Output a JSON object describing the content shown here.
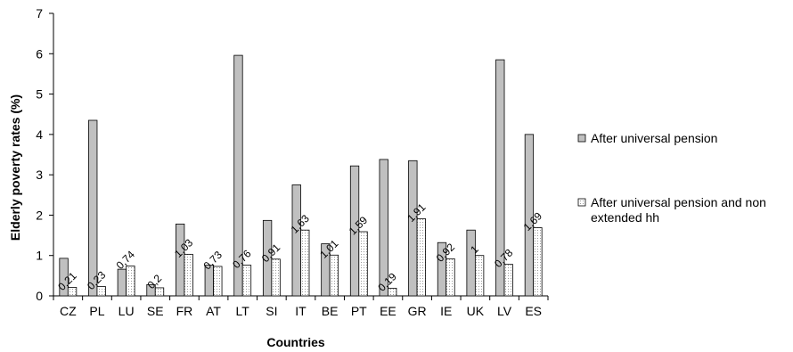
{
  "chart_data": {
    "type": "bar",
    "xlabel": "Countries",
    "ylabel": "Elderly poverty rates (%)",
    "ylim": [
      0,
      7
    ],
    "yticks": [
      "0",
      "1",
      "2",
      "3",
      "4",
      "5",
      "6",
      "7"
    ],
    "categories": [
      "CZ",
      "PL",
      "LU",
      "SE",
      "FR",
      "AT",
      "LT",
      "SI",
      "IT",
      "BE",
      "PT",
      "EE",
      "GR",
      "IE",
      "UK",
      "LV",
      "ES"
    ],
    "series": [
      {
        "name": "After universal pension",
        "color": "#c0c0c0",
        "values": [
          0.93,
          4.35,
          0.66,
          0.28,
          1.78,
          0.76,
          5.96,
          1.87,
          2.75,
          1.29,
          3.22,
          3.38,
          3.35,
          1.32,
          1.63,
          5.85,
          4.0
        ]
      },
      {
        "name": "After universal pension and non extended hh",
        "color": "#ffffff",
        "values": [
          0.21,
          0.23,
          0.74,
          0.2,
          1.03,
          0.73,
          0.76,
          0.91,
          1.63,
          1.01,
          1.59,
          0.19,
          1.91,
          0.92,
          1,
          0.78,
          1.69
        ],
        "labels": [
          "0,21",
          "0,23",
          "0,74",
          "0,2",
          "1,03",
          "0,73",
          "0,76",
          "0,91",
          "1,63",
          "1,01",
          "1,59",
          "0,19",
          "1,91",
          "0,92",
          "1",
          "0,78",
          "1,69"
        ]
      }
    ],
    "legend": {
      "position": "right",
      "entries": [
        "After universal pension",
        "After universal pension and non",
        "extended hh"
      ]
    },
    "grid": false
  }
}
